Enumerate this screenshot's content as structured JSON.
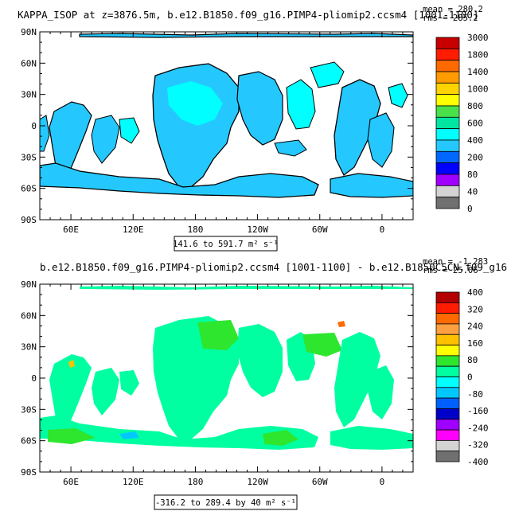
{
  "chart_data": [
    {
      "type": "heatmap",
      "map_projection": "cylindrical-equidistant",
      "title": "KAPPA_ISOP at z=3876.5m, b.e12.B1850.f09_g16.PIMP4-pliomip2.ccsm4 [1001-1100]",
      "stats": {
        "mean_label": "mean = 280.2",
        "rms_label": "rms = 285.2",
        "mean": 280.2,
        "rms": 285.2
      },
      "range_label": "141.6 to 591.7 m² s⁻¹",
      "range": {
        "min": 141.6,
        "max": 591.7,
        "units": "m² s⁻¹"
      },
      "lat_ticks": [
        "90N",
        "60N",
        "30N",
        "0",
        "30S",
        "60S",
        "90S"
      ],
      "lon_ticks": [
        "60E",
        "120E",
        "180",
        "120W",
        "60W",
        "0"
      ],
      "lon_tick_degrees": [
        60,
        120,
        180,
        240,
        300,
        360
      ],
      "lon_range": [
        30,
        390
      ],
      "lat_range": [
        -90,
        90
      ],
      "colorbar_levels": [
        "3000",
        "1800",
        "1400",
        "1000",
        "800",
        "600",
        "400",
        "200",
        "80",
        "40",
        "0"
      ],
      "colorbar_colors": [
        "#c80000",
        "#ff1c00",
        "#ff6a00",
        "#ff9a00",
        "#ffd300",
        "#ffff00",
        "#4ae04a",
        "#00e6a0",
        "#00ffff",
        "#24c8ff",
        "#0068ff",
        "#0000ff",
        "#a000ff",
        "#d4d4d4",
        "#707070"
      ]
    },
    {
      "type": "heatmap",
      "map_projection": "cylindrical-equidistant",
      "title": "b.e12.B1850.f09_g16.PIMP4-pliomip2.ccsm4 [1001-1100] - b.e12.B1850C5CN.f09_g16",
      "stats": {
        "mean_label": "mean = -1.283",
        "rms_label": "rms = 25.06",
        "mean": -1.283,
        "rms": 25.06
      },
      "range_label": "-316.2 to 289.4 by 40 m² s⁻¹",
      "range": {
        "min": -316.2,
        "max": 289.4,
        "interval": 40,
        "units": "m² s⁻¹"
      },
      "lat_ticks": [
        "90N",
        "60N",
        "30N",
        "0",
        "30S",
        "60S",
        "90S"
      ],
      "lon_ticks": [
        "60E",
        "120E",
        "180",
        "120W",
        "60W",
        "0"
      ],
      "lon_tick_degrees": [
        60,
        120,
        180,
        240,
        300,
        360
      ],
      "lon_range": [
        30,
        390
      ],
      "lat_range": [
        -90,
        90
      ],
      "colorbar_levels": [
        "400",
        "320",
        "240",
        "160",
        "80",
        "0",
        "-80",
        "-160",
        "-240",
        "-320",
        "-400"
      ],
      "colorbar_colors": [
        "#b40000",
        "#ff1c00",
        "#ff6a00",
        "#ffa040",
        "#ffc000",
        "#ffff00",
        "#2ee62e",
        "#00ffa0",
        "#00ffff",
        "#00c8ff",
        "#0060ff",
        "#0000c8",
        "#a000ff",
        "#ff00ff",
        "#d4d4d4",
        "#707070"
      ]
    }
  ]
}
